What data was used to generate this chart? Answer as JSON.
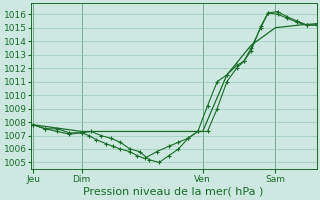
{
  "xlabel": "Pression niveau de la mer( hPa )",
  "bg_color": "#cce8e0",
  "grid_color": "#99ccbb",
  "line_color": "#1a6b2a",
  "ylim": [
    1004.5,
    1016.8
  ],
  "yticks": [
    1005,
    1006,
    1007,
    1008,
    1009,
    1010,
    1011,
    1012,
    1013,
    1014,
    1015,
    1016
  ],
  "xlim": [
    -0.05,
    5.85
  ],
  "day_positions": [
    0.0,
    1.0,
    3.5,
    5.0
  ],
  "day_labels": [
    "Jeu",
    "Dim",
    "Ven",
    "Sam"
  ],
  "vline_positions": [
    0.0,
    1.0,
    3.5,
    5.0
  ],
  "series1_x": [
    0.0,
    0.25,
    0.5,
    0.75,
    1.0,
    1.15,
    1.3,
    1.5,
    1.65,
    1.8,
    2.0,
    2.15,
    2.3,
    2.55,
    2.8,
    3.0,
    3.2,
    3.4,
    3.6,
    3.8,
    4.0,
    4.2,
    4.35,
    4.5,
    4.7,
    4.85,
    5.05,
    5.25,
    5.45,
    5.65,
    5.85
  ],
  "series1_y": [
    1007.8,
    1007.5,
    1007.5,
    1007.2,
    1007.2,
    1007.0,
    1006.7,
    1006.4,
    1006.2,
    1006.0,
    1005.8,
    1005.5,
    1005.3,
    1005.8,
    1006.2,
    1006.5,
    1006.8,
    1007.3,
    1009.2,
    1011.0,
    1011.5,
    1012.2,
    1012.5,
    1013.3,
    1015.1,
    1016.1,
    1016.2,
    1015.8,
    1015.5,
    1015.2,
    1015.2
  ],
  "series2_x": [
    0.0,
    0.25,
    0.5,
    0.75,
    1.0,
    1.2,
    1.4,
    1.6,
    1.8,
    2.0,
    2.2,
    2.4,
    2.6,
    2.8,
    3.0,
    3.2,
    3.4,
    3.6,
    3.8,
    4.0,
    4.2,
    4.35,
    4.5,
    4.7,
    4.85,
    5.05,
    5.25,
    5.45,
    5.65,
    5.85
  ],
  "series2_y": [
    1007.8,
    1007.5,
    1007.3,
    1007.1,
    1007.2,
    1007.3,
    1007.0,
    1006.8,
    1006.5,
    1006.0,
    1005.8,
    1005.2,
    1005.0,
    1005.5,
    1006.0,
    1006.8,
    1007.3,
    1007.3,
    1009.0,
    1011.0,
    1012.0,
    1012.5,
    1013.5,
    1015.0,
    1016.1,
    1016.0,
    1015.7,
    1015.4,
    1015.2,
    1015.2
  ],
  "series3_x": [
    0.0,
    1.0,
    2.5,
    3.5,
    4.0,
    4.5,
    5.0,
    5.5,
    5.85
  ],
  "series3_y": [
    1007.8,
    1007.3,
    1007.3,
    1007.3,
    1011.5,
    1013.7,
    1015.0,
    1015.2,
    1015.3
  ],
  "xlabel_fontsize": 8,
  "tick_fontsize": 6.5
}
